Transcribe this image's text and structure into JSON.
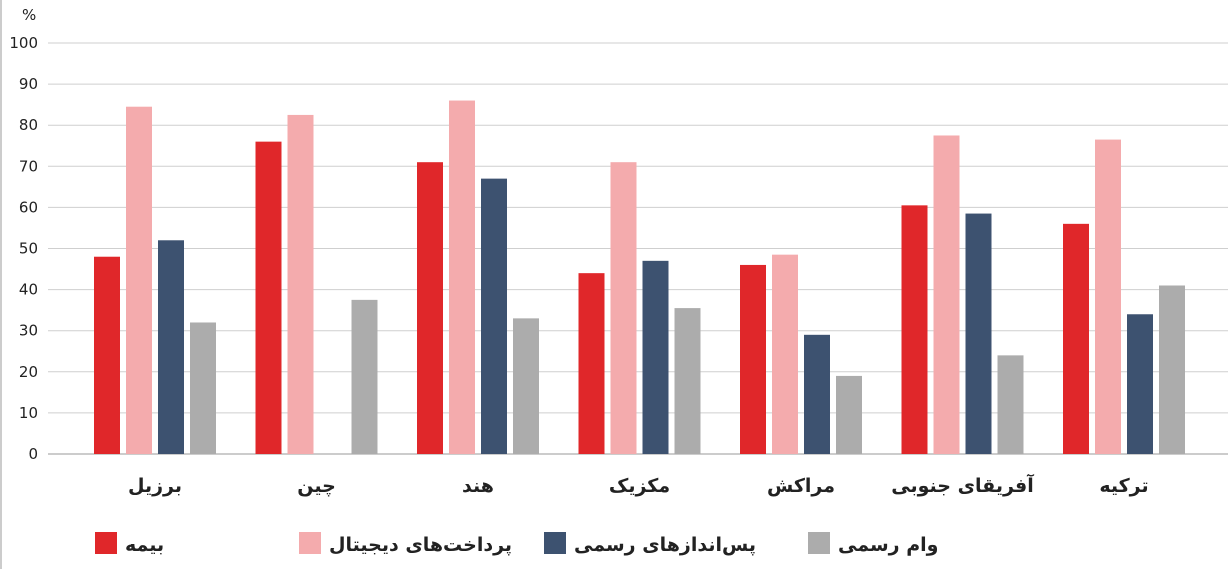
{
  "chart_data": {
    "type": "bar",
    "unit_label": "%",
    "ylim": [
      0,
      100
    ],
    "yticks": [
      0,
      10,
      20,
      30,
      40,
      50,
      60,
      70,
      80,
      90,
      100
    ],
    "grid": true,
    "legend_position": "bottom",
    "categories": [
      "برزیل",
      "چین",
      "هند",
      "مکزیک",
      "مراکش",
      "آفریقای جنوبی",
      "ترکیه"
    ],
    "series": [
      {
        "name": "بیمه",
        "color": "#e0272a",
        "values": [
          48,
          76,
          71,
          44,
          46,
          60.5,
          56
        ]
      },
      {
        "name": "پرداخت‌های دیجیتال",
        "color": "#f4abad",
        "values": [
          84.5,
          82.5,
          86,
          71,
          48.5,
          77.5,
          76.5
        ]
      },
      {
        "name": "پس‌اندازهای رسمی",
        "color": "#3d5270",
        "values": [
          52,
          0,
          67,
          47,
          29,
          58.5,
          34
        ]
      },
      {
        "name": "وام رسمی",
        "color": "#acacac",
        "values": [
          32,
          37.5,
          33,
          35.5,
          19,
          24,
          41
        ]
      }
    ]
  }
}
